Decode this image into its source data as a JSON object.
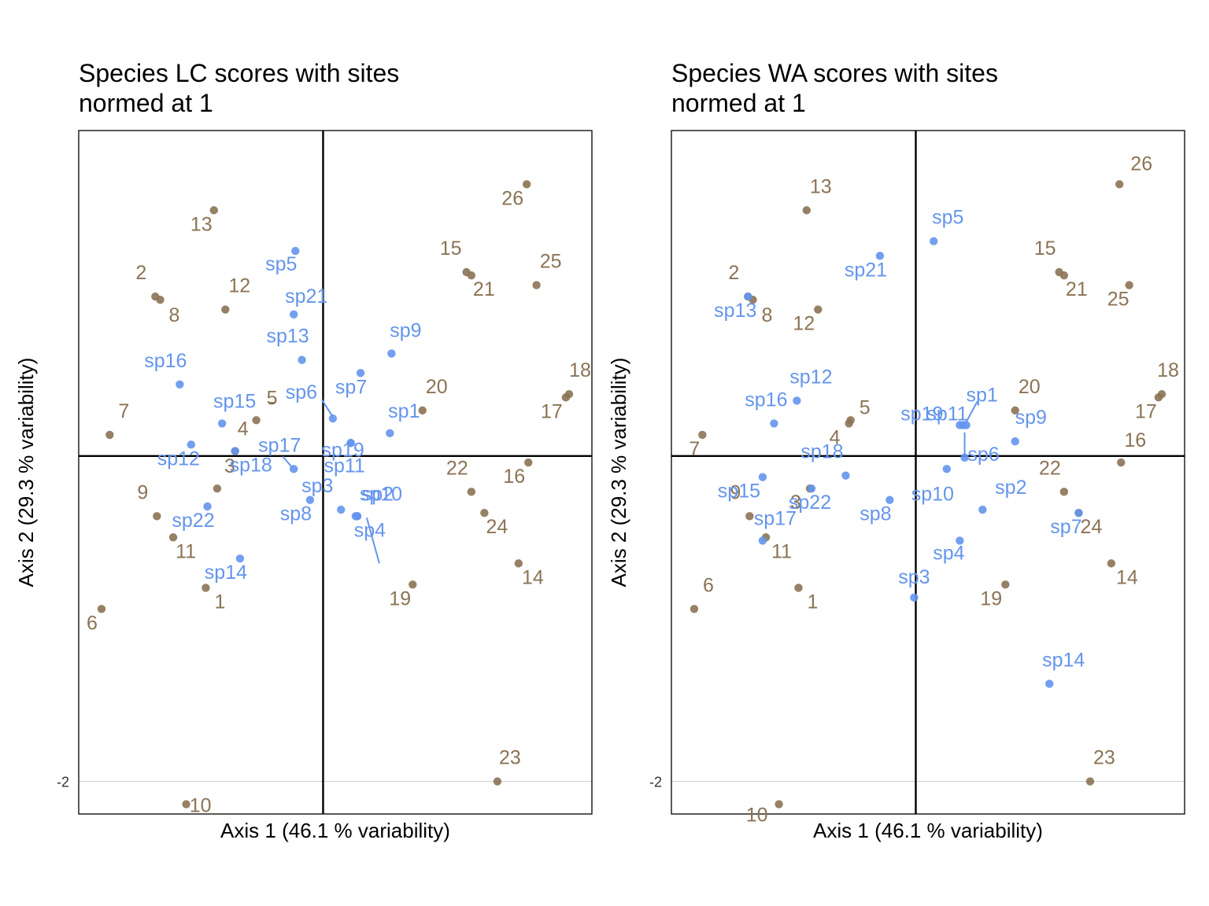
{
  "colors": {
    "sites": "#8B7355",
    "species": "#6495ED"
  },
  "chart_data": [
    {
      "type": "scatter",
      "title": [
        "Species LC scores with sites",
        "normed at 1"
      ],
      "xlabel": "Axis 1 (46.1 % variability)",
      "ylabel": "Axis 2 (29.3 % variability)",
      "xlim": [
        -1.5,
        1.65
      ],
      "ylim": [
        -2.2,
        2.0
      ],
      "y_ticks": [
        -2
      ],
      "y_tick_labels": [
        "-2"
      ],
      "grid": true,
      "legend": "none",
      "series": [
        {
          "name": "sites",
          "points": [
            {
              "label": "1",
              "x": -0.72,
              "y": -0.81
            },
            {
              "label": "2",
              "x": -1.03,
              "y": 0.98
            },
            {
              "label": "3",
              "x": -0.65,
              "y": -0.2
            },
            {
              "label": "4",
              "x": -0.54,
              "y": 0.03
            },
            {
              "label": "5",
              "x": -0.41,
              "y": 0.22
            },
            {
              "label": "6",
              "x": -1.36,
              "y": -0.94
            },
            {
              "label": "7",
              "x": -1.31,
              "y": 0.13
            },
            {
              "label": "8",
              "x": -1.0,
              "y": 0.96
            },
            {
              "label": "9",
              "x": -1.02,
              "y": -0.37
            },
            {
              "label": "10",
              "x": -0.84,
              "y": -2.14
            },
            {
              "label": "11",
              "x": -0.92,
              "y": -0.5
            },
            {
              "label": "12",
              "x": -0.6,
              "y": 0.9
            },
            {
              "label": "13",
              "x": -0.67,
              "y": 1.51
            },
            {
              "label": "14",
              "x": 1.2,
              "y": -0.66
            },
            {
              "label": "15",
              "x": 0.88,
              "y": 1.13
            },
            {
              "label": "16",
              "x": 1.26,
              "y": -0.04
            },
            {
              "label": "17",
              "x": 1.49,
              "y": 0.36
            },
            {
              "label": "18",
              "x": 1.51,
              "y": 0.38
            },
            {
              "label": "19",
              "x": 0.55,
              "y": -0.79
            },
            {
              "label": "20",
              "x": 0.61,
              "y": 0.28
            },
            {
              "label": "21",
              "x": 0.91,
              "y": 1.11
            },
            {
              "label": "22",
              "x": 0.91,
              "y": -0.22
            },
            {
              "label": "23",
              "x": 1.07,
              "y": -2.0
            },
            {
              "label": "24",
              "x": 0.99,
              "y": -0.35
            },
            {
              "label": "25",
              "x": 1.31,
              "y": 1.05
            },
            {
              "label": "26",
              "x": 1.25,
              "y": 1.67
            },
            {
              "label": "-",
              "x": -0.4,
              "y": 0.2
            }
          ]
        },
        {
          "name": "species",
          "points": [
            {
              "label": "sp1",
              "x": 0.41,
              "y": 0.14
            },
            {
              "label": "sp2",
              "x": 0.21,
              "y": -0.37
            },
            {
              "label": "sp3",
              "x": 0.11,
              "y": -0.33
            },
            {
              "label": "sp4",
              "x": 0.2,
              "y": -0.37
            },
            {
              "label": "sp5",
              "x": -0.17,
              "y": 1.26
            },
            {
              "label": "sp6",
              "x": 0.06,
              "y": 0.23
            },
            {
              "label": "sp7",
              "x": 0.23,
              "y": 0.51
            },
            {
              "label": "sp8",
              "x": -0.08,
              "y": -0.27
            },
            {
              "label": "sp9",
              "x": 0.42,
              "y": 0.63
            },
            {
              "label": "sp10",
              "x": 0.21,
              "y": -0.37
            },
            {
              "label": "sp11",
              "x": 0.17,
              "y": 0.08
            },
            {
              "label": "sp12",
              "x": -0.81,
              "y": 0.07
            },
            {
              "label": "sp13",
              "x": -0.13,
              "y": 0.59
            },
            {
              "label": "sp14",
              "x": -0.51,
              "y": -0.63
            },
            {
              "label": "sp15",
              "x": -0.62,
              "y": 0.2
            },
            {
              "label": "sp16",
              "x": -0.88,
              "y": 0.44
            },
            {
              "label": "sp17",
              "x": -0.18,
              "y": -0.08
            },
            {
              "label": "sp18",
              "x": -0.54,
              "y": 0.03
            },
            {
              "label": "sp19",
              "x": 0.17,
              "y": 0.08
            },
            {
              "label": "sp21",
              "x": -0.18,
              "y": 0.87
            },
            {
              "label": "sp22",
              "x": -0.71,
              "y": -0.31
            }
          ]
        }
      ]
    },
    {
      "type": "scatter",
      "title": [
        "Species WA scores with sites",
        "normed at 1"
      ],
      "xlabel": "Axis 1 (46.1 % variability)",
      "ylabel": "Axis 2 (29.3 % variability)",
      "xlim": [
        -1.5,
        1.65
      ],
      "ylim": [
        -2.2,
        2.0
      ],
      "y_ticks": [
        -2
      ],
      "y_tick_labels": [
        "-2"
      ],
      "grid": true,
      "legend": "none",
      "series": [
        {
          "name": "sites",
          "points": [
            {
              "label": "1",
              "x": -0.72,
              "y": -0.81
            },
            {
              "label": "2",
              "x": -1.03,
              "y": 0.98
            },
            {
              "label": "3",
              "x": -0.65,
              "y": -0.2
            },
            {
              "label": "4",
              "x": -0.41,
              "y": 0.2
            },
            {
              "label": "5",
              "x": -0.4,
              "y": 0.22
            },
            {
              "label": "6",
              "x": -1.36,
              "y": -0.94
            },
            {
              "label": "7",
              "x": -1.31,
              "y": 0.13
            },
            {
              "label": "8",
              "x": -1.0,
              "y": 0.96
            },
            {
              "label": "9",
              "x": -1.02,
              "y": -0.37
            },
            {
              "label": "10",
              "x": -0.84,
              "y": -2.14
            },
            {
              "label": "11",
              "x": -0.92,
              "y": -0.5
            },
            {
              "label": "12",
              "x": -0.6,
              "y": 0.9
            },
            {
              "label": "13",
              "x": -0.67,
              "y": 1.51
            },
            {
              "label": "14",
              "x": 1.2,
              "y": -0.66
            },
            {
              "label": "15",
              "x": 0.88,
              "y": 1.13
            },
            {
              "label": "16",
              "x": 1.26,
              "y": -0.04
            },
            {
              "label": "17",
              "x": 1.49,
              "y": 0.36
            },
            {
              "label": "18",
              "x": 1.51,
              "y": 0.38
            },
            {
              "label": "19",
              "x": 0.55,
              "y": -0.79
            },
            {
              "label": "20",
              "x": 0.61,
              "y": 0.28
            },
            {
              "label": "21",
              "x": 0.91,
              "y": 1.11
            },
            {
              "label": "22",
              "x": 0.91,
              "y": -0.22
            },
            {
              "label": "23",
              "x": 1.07,
              "y": -2.0
            },
            {
              "label": "24",
              "x": 1.0,
              "y": -0.35
            },
            {
              "label": "25",
              "x": 1.31,
              "y": 1.05
            },
            {
              "label": "26",
              "x": 1.25,
              "y": 1.67
            }
          ]
        },
        {
          "name": "species",
          "points": [
            {
              "label": "sp1",
              "x": 0.31,
              "y": 0.19
            },
            {
              "label": "sp2",
              "x": 0.41,
              "y": -0.33
            },
            {
              "label": "sp3",
              "x": -0.01,
              "y": -0.87
            },
            {
              "label": "sp4",
              "x": 0.27,
              "y": -0.52
            },
            {
              "label": "sp5",
              "x": 0.11,
              "y": 1.32
            },
            {
              "label": "sp6",
              "x": 0.3,
              "y": -0.01
            },
            {
              "label": "sp7",
              "x": 1.0,
              "y": -0.35
            },
            {
              "label": "sp8",
              "x": -0.16,
              "y": -0.27
            },
            {
              "label": "sp9",
              "x": 0.61,
              "y": 0.09
            },
            {
              "label": "sp10",
              "x": 0.19,
              "y": -0.08
            },
            {
              "label": "sp11",
              "x": 0.29,
              "y": 0.19
            },
            {
              "label": "sp12",
              "x": -0.73,
              "y": 0.34
            },
            {
              "label": "sp13",
              "x": -1.03,
              "y": 0.98
            },
            {
              "label": "sp14",
              "x": 0.82,
              "y": -1.4
            },
            {
              "label": "sp15",
              "x": -0.94,
              "y": -0.13
            },
            {
              "label": "sp16",
              "x": -0.87,
              "y": 0.2
            },
            {
              "label": "sp17",
              "x": -0.94,
              "y": -0.52
            },
            {
              "label": "sp18",
              "x": -0.43,
              "y": -0.12
            },
            {
              "label": "sp19",
              "x": 0.27,
              "y": 0.19
            },
            {
              "label": "sp21",
              "x": -0.22,
              "y": 1.23
            },
            {
              "label": "sp22",
              "x": -0.64,
              "y": -0.2
            }
          ]
        }
      ]
    }
  ]
}
